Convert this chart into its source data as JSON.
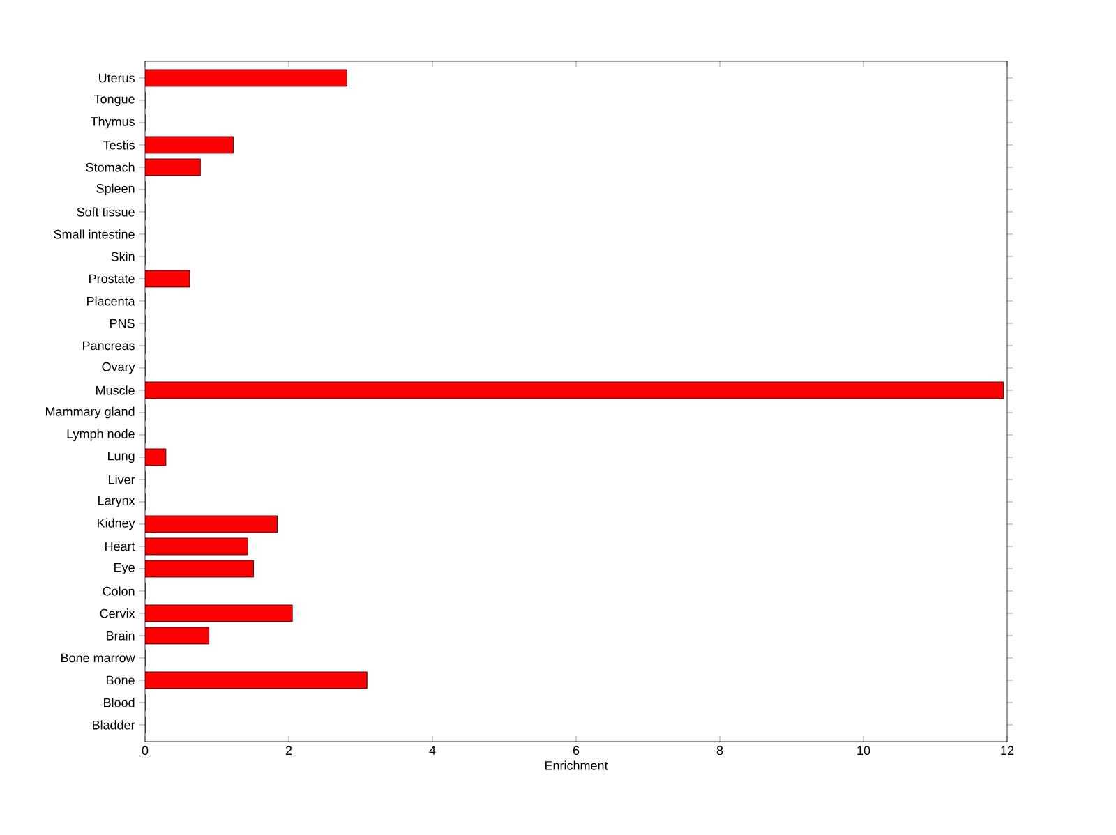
{
  "chart_data": {
    "type": "bar",
    "orientation": "horizontal",
    "xlabel": "Enrichment",
    "categories": [
      "Uterus",
      "Tongue",
      "Thymus",
      "Testis",
      "Stomach",
      "Spleen",
      "Soft tissue",
      "Small intestine",
      "Skin",
      "Prostate",
      "Placenta",
      "PNS",
      "Pancreas",
      "Ovary",
      "Muscle",
      "Mammary gland",
      "Lymph node",
      "Lung",
      "Liver",
      "Larynx",
      "Kidney",
      "Heart",
      "Eye",
      "Colon",
      "Cervix",
      "Brain",
      "Bone marrow",
      "Bone",
      "Blood",
      "Bladder"
    ],
    "values": [
      2.81,
      0,
      0,
      1.23,
      0.77,
      0,
      0,
      0,
      0,
      0.62,
      0,
      0,
      0,
      0,
      11.95,
      0,
      0,
      0.29,
      0,
      0,
      1.84,
      1.43,
      1.51,
      0,
      2.05,
      0.89,
      0,
      3.09,
      0,
      0
    ],
    "color": "#ff0000",
    "xlim": [
      0,
      12
    ],
    "xticks": [
      0,
      2,
      4,
      6,
      8,
      10,
      12
    ]
  }
}
